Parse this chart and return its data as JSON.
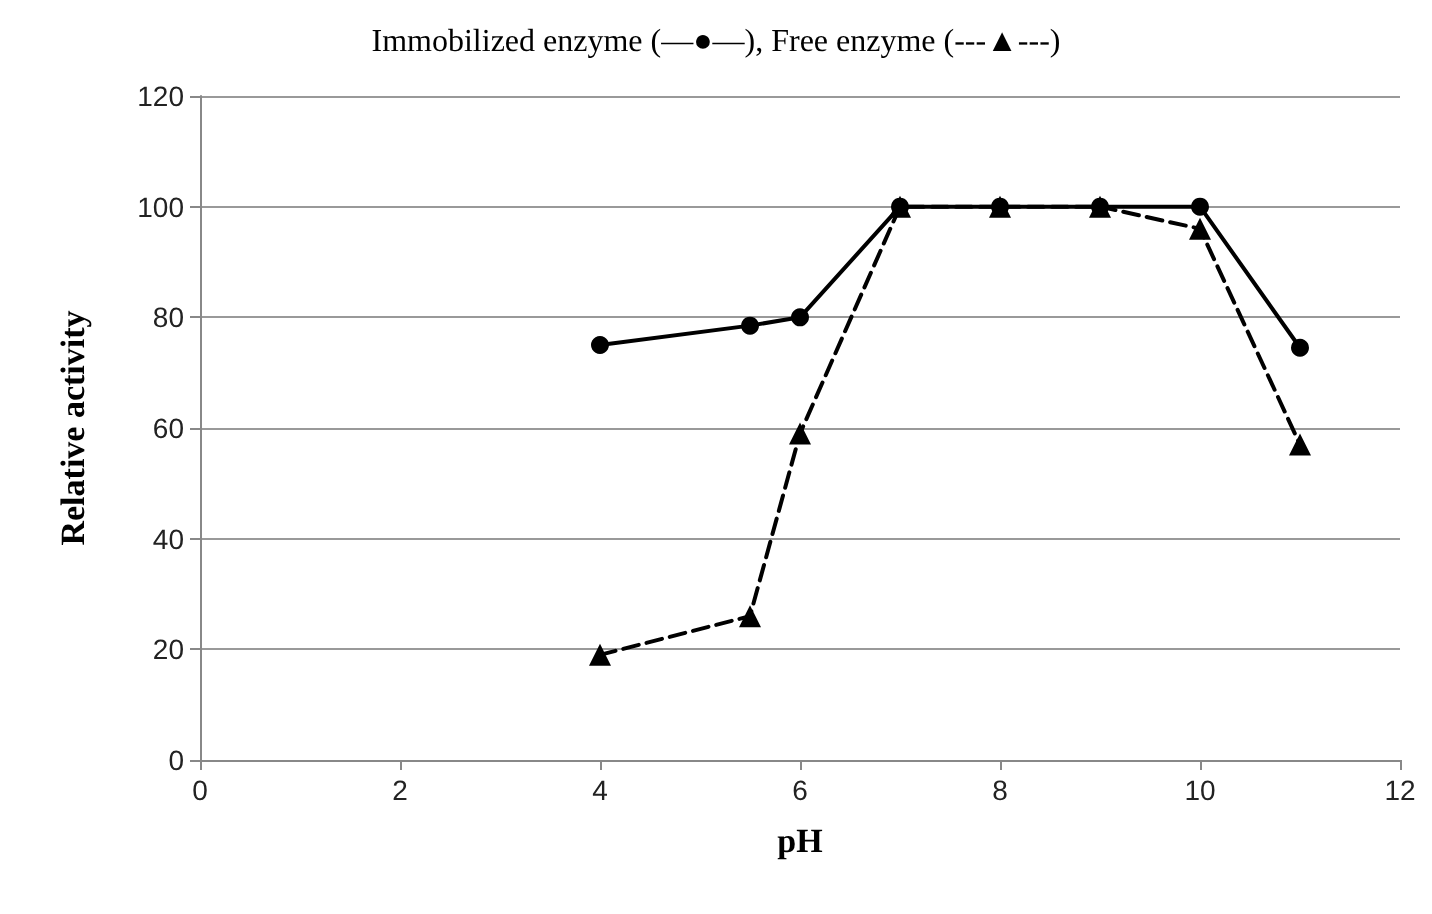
{
  "chart_data": {
    "type": "line",
    "title": "Immobilized enzyme (—●—), Free enzyme (---▲---)",
    "xlabel": "pH",
    "ylabel": "Relative activity",
    "x": [
      4,
      5.5,
      6,
      7,
      8,
      9,
      10,
      11
    ],
    "series": [
      {
        "color": "#000000",
        "marker": "circle",
        "line_style": "solid",
        "values": [
          75,
          78.5,
          80,
          100,
          100,
          100,
          100,
          74.5
        ]
      },
      {
        "color": "#000000",
        "marker": "triangle",
        "line_style": "dashed",
        "values": [
          19,
          26,
          59,
          100,
          100,
          100,
          96,
          57
        ]
      }
    ],
    "xlim": [
      0,
      12
    ],
    "xticks": [
      0,
      2,
      4,
      6,
      8,
      10,
      12
    ],
    "ylim": [
      0,
      120
    ],
    "yticks": [
      0,
      20,
      40,
      60,
      80,
      100,
      120
    ],
    "grid": "y"
  }
}
